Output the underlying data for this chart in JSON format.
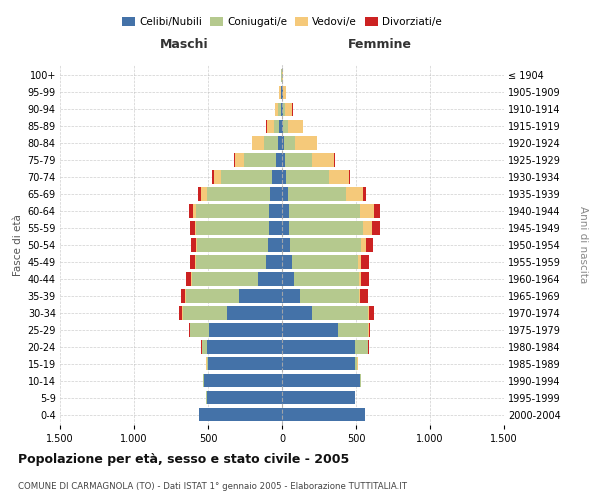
{
  "age_groups": [
    "0-4",
    "5-9",
    "10-14",
    "15-19",
    "20-24",
    "25-29",
    "30-34",
    "35-39",
    "40-44",
    "45-49",
    "50-54",
    "55-59",
    "60-64",
    "65-69",
    "70-74",
    "75-79",
    "80-84",
    "85-89",
    "90-94",
    "95-99",
    "100+"
  ],
  "birth_years": [
    "2000-2004",
    "1995-1999",
    "1990-1994",
    "1985-1989",
    "1980-1984",
    "1975-1979",
    "1970-1974",
    "1965-1969",
    "1960-1964",
    "1955-1959",
    "1950-1954",
    "1945-1949",
    "1940-1944",
    "1935-1939",
    "1930-1934",
    "1925-1929",
    "1920-1924",
    "1915-1919",
    "1910-1914",
    "1905-1909",
    "≤ 1904"
  ],
  "colors": {
    "celibi": "#4472a8",
    "coniugati": "#b5c98e",
    "vedovi": "#f5c97a",
    "divorziati": "#cc2222"
  },
  "males": {
    "celibi": [
      560,
      510,
      530,
      500,
      510,
      490,
      370,
      290,
      160,
      110,
      95,
      90,
      90,
      80,
      70,
      40,
      30,
      18,
      10,
      5,
      2
    ],
    "coniugati": [
      0,
      1,
      2,
      10,
      30,
      130,
      300,
      360,
      450,
      470,
      480,
      490,
      490,
      430,
      340,
      220,
      90,
      35,
      15,
      5,
      2
    ],
    "vedovi": [
      0,
      0,
      0,
      1,
      2,
      3,
      3,
      5,
      5,
      5,
      5,
      10,
      20,
      35,
      50,
      60,
      80,
      50,
      20,
      8,
      2
    ],
    "divorziati": [
      0,
      0,
      0,
      1,
      2,
      5,
      20,
      30,
      35,
      40,
      35,
      35,
      30,
      25,
      10,
      5,
      3,
      2,
      1,
      0,
      0
    ]
  },
  "females": {
    "celibi": [
      560,
      490,
      530,
      490,
      490,
      380,
      200,
      120,
      80,
      65,
      55,
      50,
      50,
      40,
      30,
      20,
      15,
      10,
      10,
      5,
      2
    ],
    "coniugati": [
      0,
      1,
      3,
      20,
      90,
      200,
      380,
      400,
      440,
      450,
      480,
      500,
      480,
      390,
      290,
      180,
      70,
      30,
      10,
      5,
      1
    ],
    "vedovi": [
      0,
      0,
      0,
      1,
      3,
      5,
      5,
      10,
      15,
      20,
      30,
      60,
      90,
      120,
      130,
      150,
      150,
      100,
      50,
      20,
      5
    ],
    "divorziati": [
      0,
      0,
      0,
      1,
      3,
      10,
      35,
      50,
      50,
      55,
      50,
      50,
      40,
      15,
      10,
      5,
      3,
      2,
      1,
      0,
      0
    ]
  },
  "xlim": 1500,
  "title": "Popolazione per età, sesso e stato civile - 2005",
  "subtitle": "COMUNE DI CARMAGNOLA (TO) - Dati ISTAT 1° gennaio 2005 - Elaborazione TUTTITALIA.IT",
  "xlabel_left": "Maschi",
  "xlabel_right": "Femmine",
  "ylabel_left": "Fasce di età",
  "ylabel_right": "Anni di nascita",
  "legend_labels": [
    "Celibi/Nubili",
    "Coniugati/e",
    "Vedovi/e",
    "Divorziati/e"
  ],
  "xtick_labels": [
    "1.500",
    "1.000",
    "500",
    "0",
    "500",
    "1.000",
    "1.500"
  ],
  "background_color": "#ffffff",
  "grid_color": "#bbbbbb"
}
